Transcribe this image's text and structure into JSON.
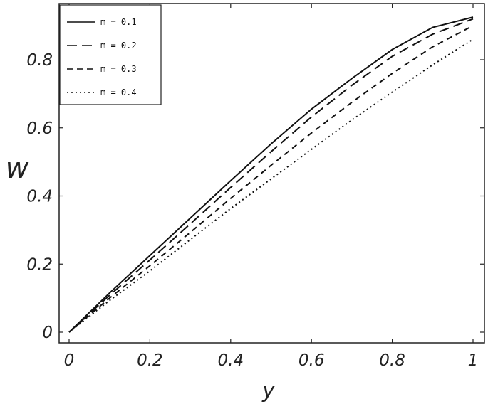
{
  "chart_data": {
    "type": "line",
    "xlabel": "y",
    "ylabel": "w",
    "xlim": [
      0,
      1
    ],
    "ylim": [
      -0.02,
      0.95
    ],
    "xticks": [
      0,
      0.2,
      0.4,
      0.6,
      0.8,
      1
    ],
    "xtick_labels": [
      "0",
      "0.2",
      "0.4",
      "0.6",
      "0.8",
      "1"
    ],
    "yticks": [
      0,
      0.2,
      0.4,
      0.6,
      0.8
    ],
    "ytick_labels": [
      "0",
      "0.2",
      "0.4",
      "0.6",
      "0.8"
    ],
    "grid": false,
    "legend_position": "top-left",
    "x": [
      0,
      0.1,
      0.2,
      0.3,
      0.4,
      0.5,
      0.6,
      0.7,
      0.8,
      0.9,
      1.0
    ],
    "series": [
      {
        "name": "m = 0.1",
        "dash": "solid",
        "values": [
          0,
          0.115,
          0.225,
          0.335,
          0.445,
          0.553,
          0.655,
          0.745,
          0.83,
          0.895,
          0.925
        ]
      },
      {
        "name": "m = 0.2",
        "dash": "dashed",
        "values": [
          0,
          0.108,
          0.212,
          0.318,
          0.425,
          0.53,
          0.632,
          0.725,
          0.81,
          0.875,
          0.92
        ]
      },
      {
        "name": "m = 0.3",
        "dash": "shortdash",
        "values": [
          0,
          0.1,
          0.195,
          0.293,
          0.393,
          0.49,
          0.585,
          0.675,
          0.76,
          0.838,
          0.9
        ]
      },
      {
        "name": "m = 0.4",
        "dash": "dotted",
        "values": [
          0,
          0.093,
          0.18,
          0.272,
          0.363,
          0.45,
          0.537,
          0.623,
          0.705,
          0.785,
          0.86
        ]
      }
    ]
  }
}
